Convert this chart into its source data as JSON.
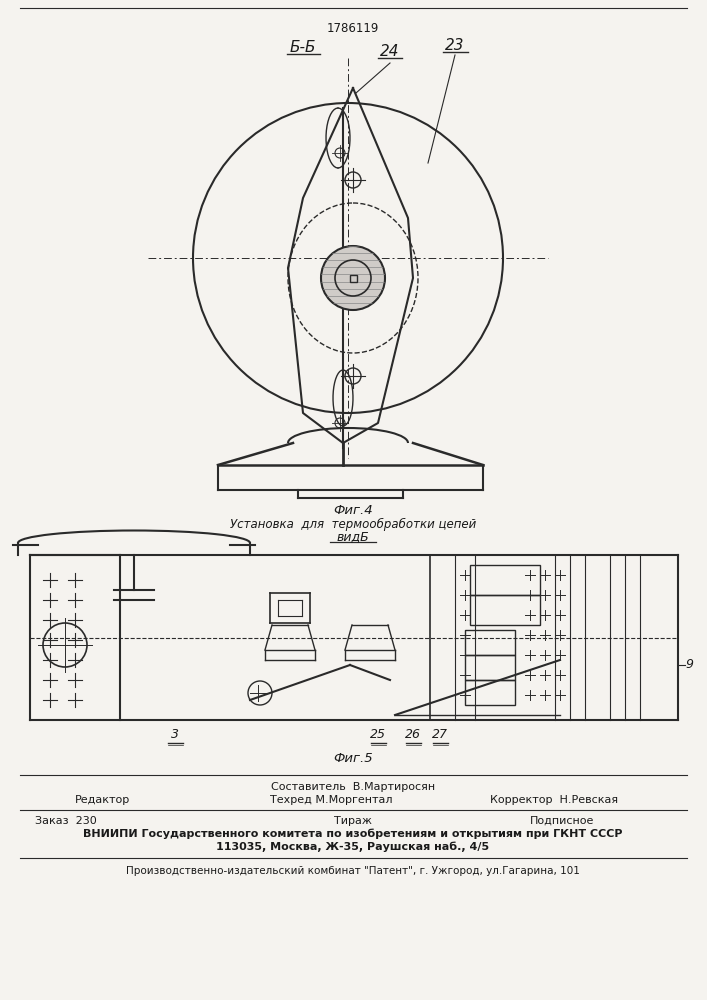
{
  "patent_number": "1786119",
  "bg_color": "#f5f3ef",
  "fig4_label": "Фиг.4",
  "fig4_subtitle": "Установка  для  термообработки цепей",
  "fig4_subtitle2": "видБ",
  "fig5_label": "Фиг.5",
  "label_BB": "Б-Б",
  "label_24": "24",
  "label_23": "23",
  "label_3": "3",
  "label_25": "25",
  "label_26": "26",
  "label_27": "27",
  "label_9": "9",
  "footer_editor": "Редактор",
  "footer_compiler": "Составитель  В.Мартиросян",
  "footer_techred": "Техред М.Моргентал",
  "footer_corrector": "Корректор  Н.Ревская",
  "footer_order": "Заказ  230",
  "footer_tirazh": "Тираж",
  "footer_podpisnoe": "Подписное",
  "footer_vniipii": "ВНИИПИ Государственного комитета по изобретениям и открытиям при ГКНТ СССР",
  "footer_address": "113035, Москва, Ж-35, Раушская наб., 4/5",
  "footer_factory": "Производственно-издательский комбинат \"Патент\", г. Ужгород, ул.Гагарина, 101",
  "line_color": "#2a2a2a",
  "text_color": "#1a1a1a"
}
